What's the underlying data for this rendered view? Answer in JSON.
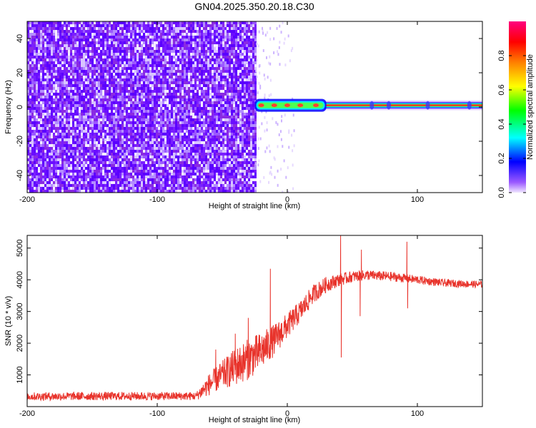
{
  "title": "GN04.2025.350.20.18.C30",
  "chart_data": [
    {
      "type": "heatmap",
      "title": "GN04.2025.350.20.18.C30",
      "xlabel": "Height of straight line (km)",
      "ylabel": "Frequency (Hz)",
      "xlim": [
        -200,
        150
      ],
      "ylim": [
        -50,
        50
      ],
      "x_ticks": [
        -200,
        -100,
        0,
        100
      ],
      "x_tick_labels": [
        "-200",
        "-100",
        "0",
        "100"
      ],
      "y_ticks": [
        -40,
        -20,
        0,
        20,
        40
      ],
      "y_tick_labels": [
        "-40",
        "-20",
        "0",
        "20",
        "40"
      ],
      "noise_region_x": [
        -200,
        -25
      ],
      "signal_line": {
        "x_start": -25,
        "x_end": 150,
        "frequency": 1
      },
      "colorbar": {
        "label": "Normalized spectral amplitude",
        "range": [
          0,
          1
        ],
        "ticks": [
          0.0,
          0.2,
          0.4,
          0.6,
          0.8
        ],
        "tick_labels": [
          "0.0",
          "0.2",
          "0.4",
          "0.6",
          "0.8"
        ],
        "colormap": [
          "#f0e6ff",
          "#8a2be2",
          "#0000ff",
          "#00ffff",
          "#00ff00",
          "#ffff00",
          "#ff8000",
          "#ff0000",
          "#ff0080"
        ]
      },
      "grid": false
    },
    {
      "type": "line",
      "xlabel": "Height of straight line (km)",
      "ylabel": "SNR (10 * v/v)",
      "xlim": [
        -200,
        150
      ],
      "ylim": [
        0,
        5400
      ],
      "x_ticks": [
        -200,
        -100,
        0,
        100
      ],
      "x_tick_labels": [
        "-200",
        "-100",
        "0",
        "100"
      ],
      "y_ticks": [
        1000,
        2000,
        3000,
        4000,
        5000
      ],
      "y_tick_labels": [
        "1000",
        "2000",
        "3000",
        "4000",
        "5000"
      ],
      "series_color": "#e8332b",
      "envelope": {
        "x": [
          -200,
          -150,
          -100,
          -70,
          -60,
          -50,
          -40,
          -30,
          -20,
          -10,
          0,
          10,
          20,
          30,
          40,
          50,
          60,
          80,
          100,
          120,
          150
        ],
        "y": [
          320,
          330,
          330,
          330,
          700,
          1000,
          1250,
          1500,
          1750,
          2100,
          2550,
          3000,
          3550,
          3850,
          4000,
          4100,
          4150,
          4100,
          4000,
          3900,
          3850
        ],
        "jitter": [
          130,
          130,
          130,
          130,
          350,
          450,
          600,
          650,
          600,
          500,
          400,
          350,
          300,
          250,
          200,
          180,
          160,
          150,
          130,
          120,
          110
        ]
      },
      "spikes": [
        {
          "x": -13,
          "y": 4350
        },
        {
          "x": -30,
          "y": 2800
        },
        {
          "x": -40,
          "y": 2300
        },
        {
          "x": -55,
          "y": 1800
        },
        {
          "x": 41,
          "y": 5400
        },
        {
          "x": 41.5,
          "y": 1550
        },
        {
          "x": 56,
          "y": 2850
        },
        {
          "x": 57,
          "y": 4950
        },
        {
          "x": 92,
          "y": 5200
        },
        {
          "x": 92.5,
          "y": 3100
        }
      ],
      "grid": false
    }
  ]
}
